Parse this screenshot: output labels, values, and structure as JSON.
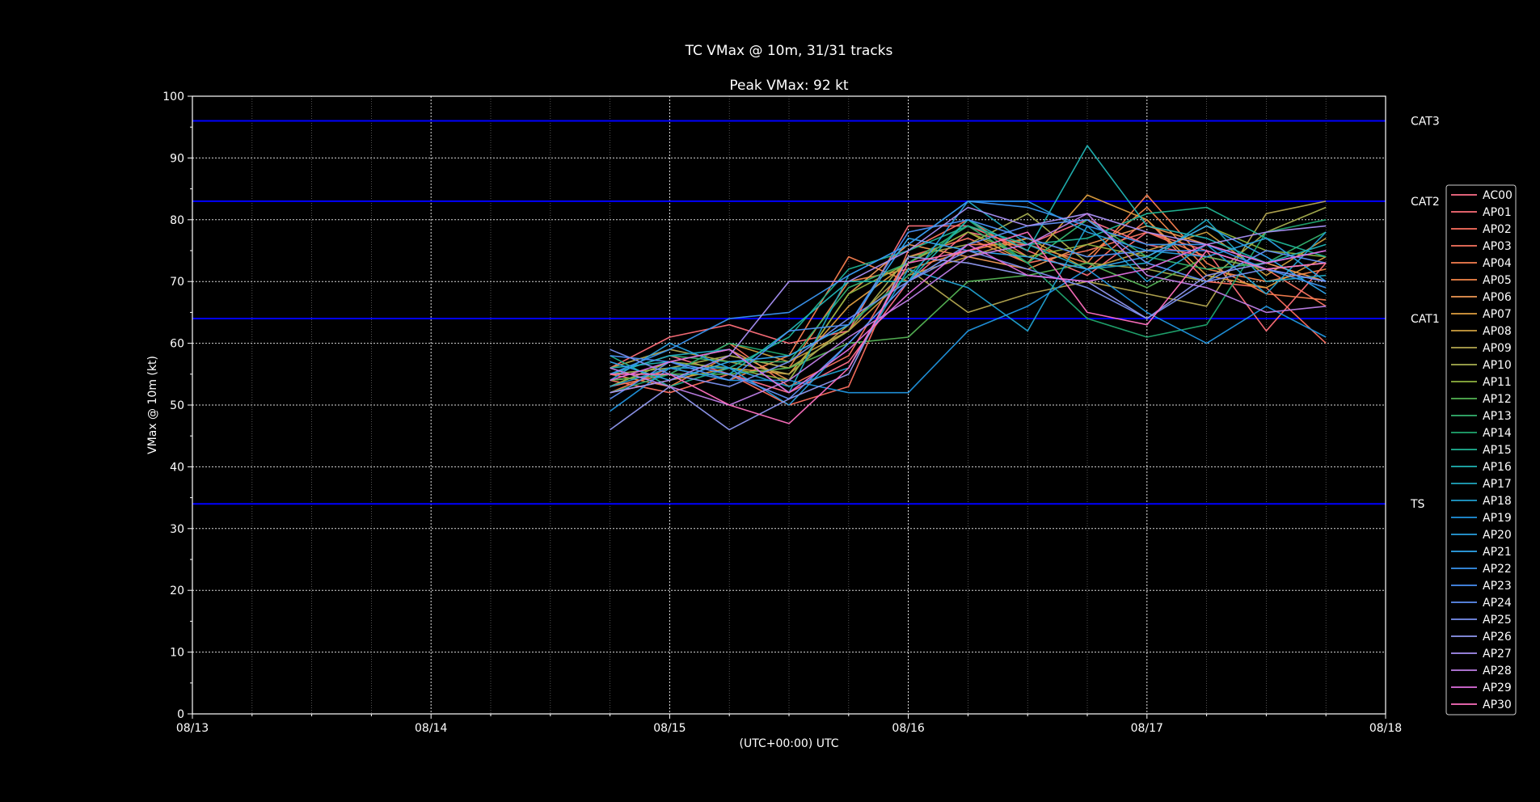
{
  "chart_data": {
    "type": "line",
    "title": "TC VMax @ 10m, 31/31 tracks",
    "subtitle": "Peak VMax: 92 kt",
    "xlabel": "(UTC+00:00) UTC",
    "ylabel": "VMax @ 10m (kt)",
    "x_tick_labels": [
      "08/13",
      "08/14",
      "08/15",
      "08/16",
      "08/17",
      "08/18"
    ],
    "x_axis_days_range": [
      0,
      5
    ],
    "ylim": [
      0,
      100
    ],
    "y_ticks": [
      0,
      10,
      20,
      30,
      40,
      50,
      60,
      70,
      80,
      90,
      100
    ],
    "grid": true,
    "legend_position": "right",
    "background_color": "#000000",
    "threshold_color": "#0000ff",
    "thresholds": [
      {
        "label": "TS",
        "value": 34
      },
      {
        "label": "CAT1",
        "value": 64
      },
      {
        "label": "CAT2",
        "value": 83
      },
      {
        "label": "CAT3",
        "value": 96
      }
    ],
    "x_hours": [
      42,
      48,
      54,
      60,
      66,
      72,
      78,
      84,
      90,
      96,
      102,
      108,
      114
    ],
    "series": [
      {
        "name": "AC00",
        "color": "#ff6f8a",
        "values": [
          55,
          58,
          55,
          52,
          57,
          70,
          78,
          76,
          80,
          76,
          74,
          72,
          73
        ]
      },
      {
        "name": "AP01",
        "color": "#ff6f7a",
        "values": [
          56,
          61,
          63,
          60,
          62,
          79,
          79,
          75,
          71,
          78,
          75,
          62,
          73
        ]
      },
      {
        "name": "AP02",
        "color": "#ff7060",
        "values": [
          54,
          52,
          55,
          50,
          53,
          75,
          80,
          74,
          72,
          80,
          70,
          69,
          60
        ]
      },
      {
        "name": "AP03",
        "color": "#fa7560",
        "values": [
          53,
          55,
          60,
          53,
          58,
          74,
          77,
          73,
          75,
          78,
          74,
          72,
          66
        ]
      },
      {
        "name": "AP04",
        "color": "#fa8050",
        "values": [
          52,
          56,
          54,
          58,
          74,
          70,
          76,
          76,
          73,
          84,
          73,
          68,
          67
        ]
      },
      {
        "name": "AP05",
        "color": "#f5874a",
        "values": [
          55,
          53,
          58,
          56,
          70,
          72,
          75,
          77,
          74,
          82,
          72,
          70,
          72
        ]
      },
      {
        "name": "AP06",
        "color": "#f09a55",
        "values": [
          53,
          57,
          59,
          54,
          68,
          76,
          74,
          72,
          76,
          79,
          76,
          73,
          70
        ]
      },
      {
        "name": "AP07",
        "color": "#e09f40",
        "values": [
          52,
          54,
          56,
          55,
          66,
          73,
          78,
          73,
          84,
          80,
          71,
          69,
          74
        ]
      },
      {
        "name": "AP08",
        "color": "#cfa040",
        "values": [
          54,
          55,
          60,
          57,
          62,
          71,
          74,
          77,
          72,
          75,
          78,
          71,
          77
        ]
      },
      {
        "name": "AP09",
        "color": "#b5a850",
        "values": [
          56,
          59,
          57,
          55,
          63,
          72,
          65,
          68,
          70,
          68,
          66,
          81,
          83
        ]
      },
      {
        "name": "AP10",
        "color": "#a8b050",
        "values": [
          55,
          56,
          58,
          56,
          62,
          74,
          76,
          81,
          73,
          72,
          70,
          78,
          82
        ]
      },
      {
        "name": "AP11",
        "color": "#90b540",
        "values": [
          53,
          57,
          56,
          54,
          68,
          73,
          78,
          74,
          76,
          74,
          79,
          75,
          74
        ]
      },
      {
        "name": "AP12",
        "color": "#55b555",
        "values": [
          54,
          55,
          55,
          56,
          60,
          61,
          70,
          71,
          73,
          69,
          74,
          72,
          73
        ]
      },
      {
        "name": "AP13",
        "color": "#35b570",
        "values": [
          55,
          58,
          57,
          57,
          69,
          73,
          79,
          73,
          80,
          74,
          72,
          73,
          78
        ]
      },
      {
        "name": "AP14",
        "color": "#20a870",
        "values": [
          52,
          55,
          60,
          58,
          63,
          71,
          80,
          73,
          64,
          61,
          63,
          78,
          80
        ]
      },
      {
        "name": "AP15",
        "color": "#20b595",
        "values": [
          58,
          53,
          56,
          61,
          72,
          75,
          79,
          76,
          77,
          81,
          82,
          77,
          74
        ]
      },
      {
        "name": "AP16",
        "color": "#20b5b5",
        "values": [
          56,
          57,
          55,
          62,
          70,
          70,
          80,
          75,
          92,
          79,
          77,
          73,
          76
        ]
      },
      {
        "name": "AP17",
        "color": "#20a8c0",
        "values": [
          55,
          58,
          59,
          52,
          71,
          76,
          83,
          76,
          72,
          73,
          80,
          70,
          71
        ]
      },
      {
        "name": "AP18",
        "color": "#20a0d0",
        "values": [
          53,
          56,
          56,
          53,
          56,
          72,
          69,
          62,
          79,
          70,
          76,
          68,
          78
        ]
      },
      {
        "name": "AP19",
        "color": "#2095e0",
        "values": [
          49,
          56,
          54,
          54,
          52,
          52,
          62,
          66,
          72,
          65,
          60,
          66,
          61
        ]
      },
      {
        "name": "AP20",
        "color": "#2aa0e0",
        "values": [
          54,
          60,
          56,
          50,
          60,
          70,
          83,
          83,
          78,
          75,
          74,
          77,
          70
        ]
      },
      {
        "name": "AP21",
        "color": "#30a8f0",
        "values": [
          57,
          54,
          57,
          58,
          63,
          77,
          75,
          74,
          72,
          74,
          79,
          74,
          68
        ]
      },
      {
        "name": "AP22",
        "color": "#3a95f0",
        "values": [
          55,
          59,
          64,
          65,
          71,
          76,
          83,
          82,
          79,
          76,
          76,
          72,
          69
        ]
      },
      {
        "name": "AP23",
        "color": "#4a90f5",
        "values": [
          58,
          57,
          54,
          62,
          63,
          78,
          80,
          77,
          74,
          75,
          75,
          72,
          70
        ]
      },
      {
        "name": "AP24",
        "color": "#6090f5",
        "values": [
          51,
          57,
          55,
          51,
          60,
          70,
          76,
          79,
          80,
          73,
          70,
          75,
          73
        ]
      },
      {
        "name": "AP25",
        "color": "#7a90f0",
        "values": [
          59,
          55,
          53,
          57,
          64,
          70,
          75,
          72,
          69,
          64,
          70,
          72,
          70
        ]
      },
      {
        "name": "AP26",
        "color": "#9098f0",
        "values": [
          46,
          53,
          46,
          51,
          55,
          74,
          73,
          71,
          70,
          64,
          71,
          73,
          75
        ]
      },
      {
        "name": "AP27",
        "color": "#a890f5",
        "values": [
          52,
          54,
          58,
          70,
          70,
          75,
          82,
          79,
          81,
          78,
          76,
          78,
          79
        ]
      },
      {
        "name": "AP28",
        "color": "#c080e8",
        "values": [
          56,
          53,
          50,
          54,
          61,
          67,
          74,
          76,
          81,
          71,
          69,
          65,
          66
        ]
      },
      {
        "name": "AP29",
        "color": "#e070e0",
        "values": [
          54,
          57,
          59,
          52,
          59,
          68,
          76,
          71,
          70,
          72,
          76,
          73,
          75
        ]
      },
      {
        "name": "AP30",
        "color": "#ff70c0",
        "values": [
          55,
          55,
          50,
          47,
          56,
          73,
          75,
          78,
          65,
          63,
          75,
          72,
          73
        ]
      }
    ]
  }
}
